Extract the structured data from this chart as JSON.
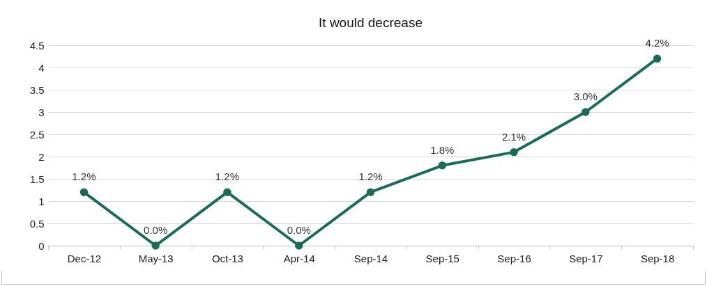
{
  "chart_data": {
    "type": "line",
    "title": "It would decrease",
    "categories": [
      "Dec-12",
      "May-13",
      "Oct-13",
      "Apr-14",
      "Sep-14",
      "Sep-15",
      "Sep-16",
      "Sep-17",
      "Sep-18"
    ],
    "series": [
      {
        "color": "#1a6b57",
        "values": [
          1.2,
          0,
          1.2,
          0,
          1.2,
          1.8,
          2.1,
          3.0,
          4.2
        ],
        "value_labels": [
          "1.2%",
          "0.0%",
          "1.2%",
          "0.0%",
          "1.2%",
          "1.8%",
          "2.1%",
          "3.0%",
          "4.2%"
        ]
      }
    ],
    "ylim": [
      0,
      4.5
    ],
    "yticks": [
      0,
      0.5,
      1,
      1.5,
      2,
      2.5,
      3,
      3.5,
      4,
      4.5
    ],
    "grid": "y",
    "marker": "circle",
    "line_style": "solid"
  }
}
